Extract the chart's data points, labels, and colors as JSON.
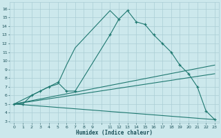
{
  "xlabel": "Humidex (Indice chaleur)",
  "bg_color": "#cce8ec",
  "grid_color": "#aacdd4",
  "line_color": "#1e7870",
  "xlim": [
    -0.5,
    23.5
  ],
  "ylim": [
    2.8,
    16.8
  ],
  "yticks": [
    3,
    4,
    5,
    6,
    7,
    8,
    9,
    10,
    11,
    12,
    13,
    14,
    15,
    16
  ],
  "xticks": [
    0,
    1,
    2,
    3,
    4,
    5,
    6,
    7,
    8,
    9,
    10,
    11,
    12,
    13,
    14,
    15,
    16,
    17,
    18,
    19,
    20,
    21,
    22,
    23
  ],
  "xtick_labels": [
    "0",
    "1",
    "2",
    "3",
    "4",
    "5",
    "6",
    "7",
    "8",
    "9",
    "",
    "11",
    "12",
    "13",
    "14",
    "15",
    "16",
    "17",
    "18",
    "19",
    "20",
    "21",
    "22",
    "23"
  ],
  "main_curve_x": [
    0,
    1,
    2,
    3,
    4,
    5,
    6,
    7,
    11,
    12,
    13,
    14,
    15,
    16,
    17,
    18,
    19,
    20,
    21,
    22,
    23
  ],
  "main_curve_y": [
    5.0,
    5.0,
    6.0,
    6.5,
    7.0,
    7.5,
    6.5,
    6.5,
    13.0,
    14.8,
    15.8,
    14.5,
    14.2,
    13.0,
    12.0,
    11.0,
    9.5,
    8.5,
    7.0,
    4.2,
    3.2
  ],
  "steep_line_x": [
    0,
    3,
    4,
    5,
    6,
    7,
    11,
    12
  ],
  "steep_line_y": [
    5.0,
    6.5,
    7.0,
    7.3,
    9.5,
    11.5,
    15.8,
    14.8
  ],
  "fan_line1_x": [
    0,
    23
  ],
  "fan_line1_y": [
    5.0,
    9.5
  ],
  "fan_line2_x": [
    0,
    23
  ],
  "fan_line2_y": [
    5.0,
    8.5
  ],
  "fan_line3_x": [
    0,
    23
  ],
  "fan_line3_y": [
    5.0,
    3.2
  ]
}
